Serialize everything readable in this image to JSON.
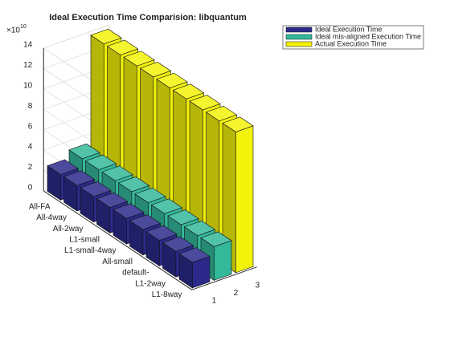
{
  "chart_data": {
    "type": "bar3",
    "title": "Ideal Execution Time Comparision: libquantum",
    "multiplier_base": "×10",
    "multiplier_exponent": "10",
    "categories": [
      "All-FA",
      "All-4way",
      "All-2way",
      "L1-small",
      "L1-small-4way",
      "All-small",
      "default-",
      "L1-2way",
      "L1-8way"
    ],
    "series_ticks": [
      1,
      2,
      3
    ],
    "series": [
      {
        "name": "Ideal Execution Time",
        "color": "#2b2a8a",
        "values": [
          2.5,
          2.5,
          2.5,
          2.5,
          2.5,
          2.5,
          2.5,
          2.5,
          2.5
        ]
      },
      {
        "name": "Ideal mis-aligned Execution Time",
        "color": "#33b89a",
        "values": [
          3.3,
          3.3,
          3.3,
          3.3,
          3.3,
          3.3,
          3.3,
          3.3,
          3.3
        ]
      },
      {
        "name": "Actual Execution Time",
        "color": "#f2f20a",
        "values": [
          13.8,
          13.8,
          13.8,
          13.8,
          13.8,
          13.8,
          13.8,
          13.8,
          13.8
        ]
      }
    ],
    "ylim": [
      0,
      14
    ],
    "yticks": [
      0,
      2,
      4,
      6,
      8,
      10,
      12,
      14
    ],
    "grid": true,
    "legend": "top-right"
  }
}
